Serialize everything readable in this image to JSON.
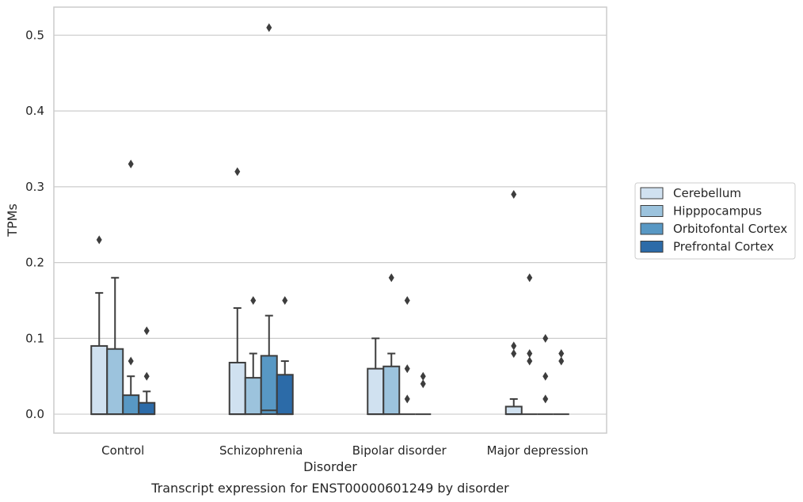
{
  "caption": "Transcript expression for ENST00000601249 by disorder",
  "chart_data": {
    "type": "box",
    "title": "",
    "xlabel": "Disorder",
    "ylabel": "TPMs",
    "ylim": [
      -0.025,
      0.537
    ],
    "yticks": [
      0.0,
      0.1,
      0.2,
      0.3,
      0.4,
      0.5
    ],
    "ytick_labels": [
      "0.0",
      "0.1",
      "0.2",
      "0.3",
      "0.4",
      "0.5"
    ],
    "grid": "horizontal",
    "legend_position": "right",
    "categories": [
      "Control",
      "Schizophrenia",
      "Bipolar disorder",
      "Major depression"
    ],
    "series": [
      {
        "name": "Cerebellum",
        "color": "#d0e1f0",
        "boxes": [
          {
            "q1": 0.0,
            "median": 0.0,
            "q3": 0.09,
            "whisker_low": 0.0,
            "whisker_high": 0.16,
            "outliers": [
              0.23
            ]
          },
          {
            "q1": 0.0,
            "median": 0.0,
            "q3": 0.068,
            "whisker_low": 0.0,
            "whisker_high": 0.14,
            "outliers": [
              0.32
            ]
          },
          {
            "q1": 0.0,
            "median": 0.0,
            "q3": 0.06,
            "whisker_low": 0.0,
            "whisker_high": 0.1,
            "outliers": []
          },
          {
            "q1": 0.0,
            "median": 0.0,
            "q3": 0.01,
            "whisker_low": 0.0,
            "whisker_high": 0.02,
            "outliers": [
              0.08,
              0.09,
              0.29
            ]
          }
        ]
      },
      {
        "name": "Hipppocampus",
        "color": "#9cc3dd",
        "boxes": [
          {
            "q1": 0.0,
            "median": 0.0,
            "q3": 0.086,
            "whisker_low": 0.0,
            "whisker_high": 0.18,
            "outliers": []
          },
          {
            "q1": 0.0,
            "median": 0.0,
            "q3": 0.048,
            "whisker_low": 0.0,
            "whisker_high": 0.08,
            "outliers": [
              0.15
            ]
          },
          {
            "q1": 0.0,
            "median": 0.0,
            "q3": 0.063,
            "whisker_low": 0.0,
            "whisker_high": 0.08,
            "outliers": [
              0.18
            ]
          },
          {
            "q1": 0.0,
            "median": 0.0,
            "q3": 0.0,
            "whisker_low": 0.0,
            "whisker_high": 0.0,
            "outliers": [
              0.07,
              0.08,
              0.18
            ]
          }
        ]
      },
      {
        "name": "Orbitofontal Cortex",
        "color": "#5898c4",
        "boxes": [
          {
            "q1": 0.0,
            "median": 0.0,
            "q3": 0.025,
            "whisker_low": 0.0,
            "whisker_high": 0.05,
            "outliers": [
              0.07,
              0.33
            ]
          },
          {
            "q1": 0.0,
            "median": 0.005,
            "q3": 0.077,
            "whisker_low": 0.0,
            "whisker_high": 0.13,
            "outliers": [
              0.51
            ]
          },
          {
            "q1": 0.0,
            "median": 0.0,
            "q3": 0.0,
            "whisker_low": 0.0,
            "whisker_high": 0.0,
            "outliers": [
              0.02,
              0.06,
              0.15
            ]
          },
          {
            "q1": 0.0,
            "median": 0.0,
            "q3": 0.0,
            "whisker_low": 0.0,
            "whisker_high": 0.0,
            "outliers": [
              0.02,
              0.05,
              0.1
            ]
          }
        ]
      },
      {
        "name": "Prefrontal Cortex",
        "color": "#2c6ba8",
        "boxes": [
          {
            "q1": 0.0,
            "median": 0.0,
            "q3": 0.015,
            "whisker_low": 0.0,
            "whisker_high": 0.03,
            "outliers": [
              0.05,
              0.11
            ]
          },
          {
            "q1": 0.0,
            "median": 0.0,
            "q3": 0.052,
            "whisker_low": 0.0,
            "whisker_high": 0.07,
            "outliers": [
              0.15
            ]
          },
          {
            "q1": 0.0,
            "median": 0.0,
            "q3": 0.0,
            "whisker_low": 0.0,
            "whisker_high": 0.0,
            "outliers": [
              0.04,
              0.05
            ]
          },
          {
            "q1": 0.0,
            "median": 0.0,
            "q3": 0.0,
            "whisker_low": 0.0,
            "whisker_high": 0.0,
            "outliers": [
              0.07,
              0.08
            ]
          }
        ]
      }
    ]
  }
}
